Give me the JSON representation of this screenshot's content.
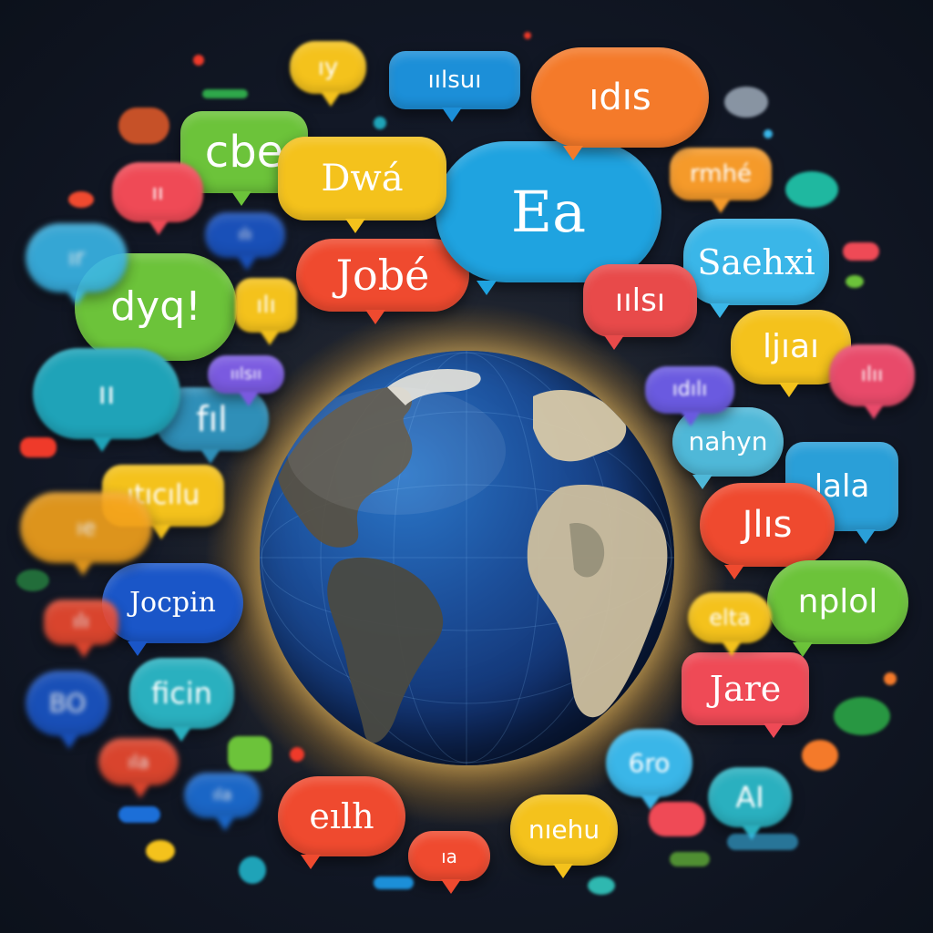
{
  "bubbles": [
    {
      "text": "Jobé",
      "color": "#ef4a2f"
    },
    {
      "text": "Ea",
      "color": "#1fa3e0"
    },
    {
      "text": "cbe",
      "color": "#6cc33a"
    },
    {
      "text": "Dwá",
      "color": "#f4c21c"
    },
    {
      "text": "dyq!",
      "color": "#6cc33a"
    },
    {
      "text": "Saehxi",
      "color": "#3ab6e8"
    },
    {
      "text": "fıl",
      "color": "#2f8fb8"
    },
    {
      "text": "Jocpin",
      "color": "#1a56c8"
    },
    {
      "text": "ficin",
      "color": "#2ab0bf"
    },
    {
      "text": "ıtıcılu",
      "color": "#f4c21c"
    },
    {
      "text": "ıılsı",
      "color": "#e84a4a"
    },
    {
      "text": "ljıaı",
      "color": "#f4c21c"
    },
    {
      "text": "nahyn",
      "color": "#4fb8d8"
    },
    {
      "text": "lala",
      "color": "#2a9fd8"
    },
    {
      "text": "Jlıs",
      "color": "#ef4a2f"
    },
    {
      "text": "nplol",
      "color": "#6cc33a"
    },
    {
      "text": "Jare",
      "color": "#ef4a56"
    },
    {
      "text": "elta",
      "color": "#f4c21c"
    },
    {
      "text": "eılh",
      "color": "#ef4a2f"
    },
    {
      "text": "nıehu",
      "color": "#f4c21c"
    },
    {
      "text": "AI",
      "color": "#2ab0bf"
    },
    {
      "text": "6ro",
      "color": "#3ab6e8"
    },
    {
      "text": "rmhé",
      "color": "#f59a2a"
    },
    {
      "text": "ıılsuı",
      "color": "#1c8fd8"
    },
    {
      "text": "ıdıs",
      "color": "#f47a2a"
    },
    {
      "text": "ıılsıı",
      "color": "#7a5ae0"
    },
    {
      "text": "ılıı",
      "color": "#e84a6a"
    },
    {
      "text": "ıdılı",
      "color": "#1c8fd8"
    },
    {
      "text": "ılı",
      "color": "#f4c21c"
    },
    {
      "text": "ıy",
      "color": "#f4c21c"
    },
    {
      "text": "ıı",
      "color": "#ef4a56"
    },
    {
      "text": "ır",
      "color": "#3ab6e8"
    },
    {
      "text": "ıı",
      "color": "#1fa3b8"
    },
    {
      "text": "ıe",
      "color": "#f4a21c"
    },
    {
      "text": "ılı",
      "color": "#1a56c8"
    },
    {
      "text": "BO",
      "color": "#1a56c8"
    },
    {
      "text": "ılı",
      "color": "#ef4a2f"
    },
    {
      "text": "ıla",
      "color": "#ef4a2f"
    },
    {
      "text": "ıla",
      "color": "#1c6fd8"
    },
    {
      "text": "ıa",
      "color": "#ef4a2f"
    }
  ]
}
